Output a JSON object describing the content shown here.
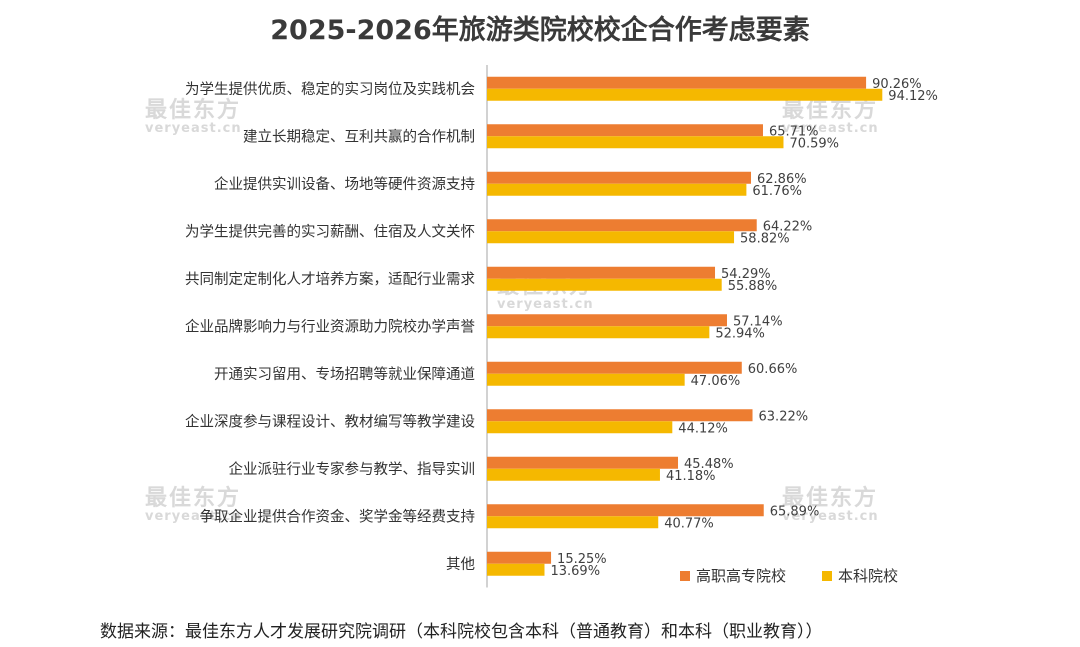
{
  "chart_data": {
    "type": "bar",
    "orientation": "horizontal",
    "title": "2025-2026年旅游类院校校企合作考虑要素",
    "categories": [
      "为学生提供优质、稳定的实习岗位及实践机会",
      "建立长期稳定、互利共赢的合作机制",
      "企业提供实训设备、场地等硬件资源支持",
      "为学生提供完善的实习薪酬、住宿及人文关怀",
      "共同制定定制化人才培养方案，适配行业需求",
      "企业品牌影响力与行业资源助力院校办学声誉",
      "开通实习留用、专场招聘等就业保障通道",
      "企业深度参与课程设计、教材编写等教学建设",
      "企业派驻行业专家参与教学、指导实训",
      "争取企业提供合作资金、奖学金等经费支持",
      "其他"
    ],
    "series": [
      {
        "name": "高职高专院校",
        "color": "#ed7d31",
        "values": [
          90.26,
          65.71,
          62.86,
          64.22,
          54.29,
          57.14,
          60.66,
          63.22,
          45.48,
          65.89,
          15.25
        ],
        "labels": [
          "90.26%",
          "65.71%",
          "62.86%",
          "64.22%",
          "54.29%",
          "57.14%",
          "60.66%",
          "63.22%",
          "45.48%",
          "65.89%",
          "15.25%"
        ]
      },
      {
        "name": "本科院校",
        "color": "#f5b800",
        "values": [
          94.12,
          70.59,
          61.76,
          58.82,
          55.88,
          52.94,
          47.06,
          44.12,
          41.18,
          40.77,
          13.69
        ],
        "labels": [
          "94.12%",
          "70.59%",
          "61.76%",
          "58.82%",
          "55.88%",
          "52.94%",
          "47.06%",
          "44.12%",
          "41.18%",
          "40.77%",
          "13.69%"
        ]
      }
    ],
    "xlim": [
      0,
      100
    ],
    "legend": "bottom-right",
    "grid": false
  },
  "source": "数据来源：最佳东方人才发展研究院调研（本科院校包含本科（普通教育）和本科（职业教育））",
  "watermark": {
    "text": "最佳东方",
    "sub": "veryeast.cn"
  }
}
